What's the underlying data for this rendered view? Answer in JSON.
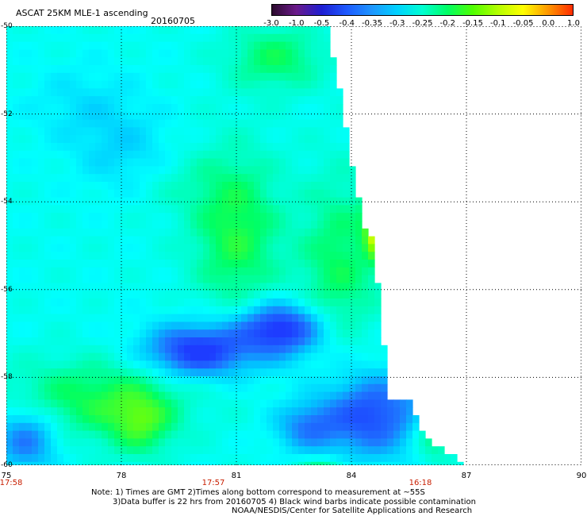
{
  "header": {
    "title": "ASCAT 25KM MLE-1 ascending",
    "date": "20160705"
  },
  "colorbar": {
    "ticks": [
      "-3.0",
      "-1.0",
      "-0.5",
      "-0.4",
      "-0.35",
      "-0.3",
      "-0.25",
      "-0.2",
      "-0.15",
      "-0.1",
      "-0.05",
      "0.0",
      "1.0"
    ],
    "colors": [
      "#2a0a2a",
      "#6a1a8a",
      "#1e1ed2",
      "#1e5aff",
      "#1e96ff",
      "#00d2ff",
      "#00ffd2",
      "#00ff64",
      "#50ff00",
      "#b4ff00",
      "#ffff00",
      "#ff9600",
      "#ff2800"
    ]
  },
  "map": {
    "latitudes": [
      "-50",
      "-52",
      "-54",
      "-56",
      "-58",
      "-60"
    ],
    "longitudes": [
      "75",
      "78",
      "81",
      "84",
      "87",
      "90"
    ],
    "times": [
      {
        "label": "17:58",
        "lon": 75
      },
      {
        "label": "17:57",
        "lon": 80.4
      },
      {
        "label": "16:18",
        "lon": 85.8
      }
    ],
    "palette": {
      "deep_blue": "#1e3cff",
      "blue": "#1e78ff",
      "light_blue": "#00c8ff",
      "cyan": "#00ffff",
      "aqua": "#00ffc8",
      "green": "#00ff64",
      "lime": "#78ff00",
      "yellow": "#ffff00",
      "orange": "#ffaa00"
    }
  },
  "footer": {
    "note_line1": "Note: 1) Times are GMT 2)Times along bottom correspond to measurement at ~55S",
    "note_line2": "3)Data buffer is 22 hrs from 20160705 4) Black wind barbs indicate possible contamination",
    "credit": "NOAA/NESDIS/Center for Satellite Applications and Research"
  }
}
